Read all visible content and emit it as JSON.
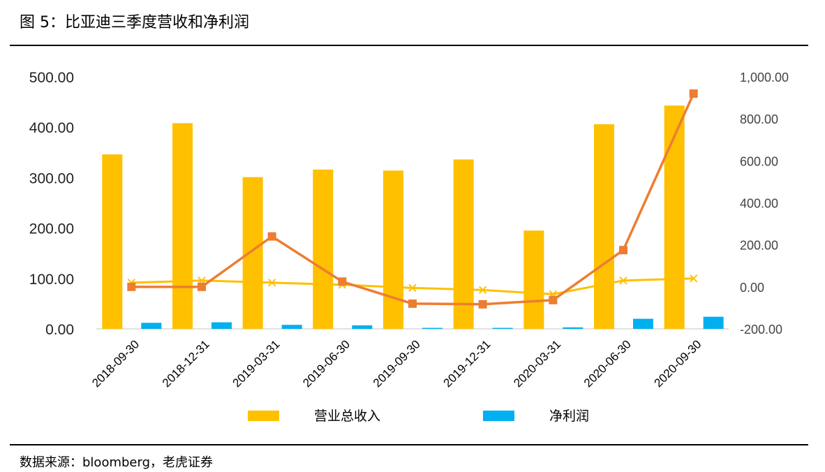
{
  "header": {
    "title": "图 5：比亚迪三季度营收和净利润"
  },
  "footer": {
    "source": "数据来源：bloomberg，老虎证券"
  },
  "chart_data": {
    "type": "bar",
    "categories": [
      "2018-09-30",
      "2018-12-31",
      "2019-03-31",
      "2019-06-30",
      "2019-09-30",
      "2019-12-31",
      "2020-03-31",
      "2020-06-30",
      "2020-09-30"
    ],
    "left_axis": {
      "ylim": [
        0,
        500
      ],
      "ticks": [
        "0.00",
        "100.00",
        "200.00",
        "300.00",
        "400.00",
        "500.00"
      ]
    },
    "right_axis": {
      "ylim": [
        -200,
        1000
      ],
      "ticks": [
        "-200.00",
        "0.00",
        "200.00",
        "400.00",
        "600.00",
        "800.00",
        "1,000.00"
      ]
    },
    "series": [
      {
        "name": "营业总收入",
        "type": "bar",
        "axis": "left",
        "color": "#FFC000",
        "values": [
          346,
          408,
          301,
          316,
          314,
          336,
          195,
          406,
          443
        ]
      },
      {
        "name": "净利润",
        "type": "bar",
        "axis": "left",
        "color": "#00B0F0",
        "values": [
          12,
          13,
          8,
          7,
          2,
          2,
          3,
          20,
          24
        ]
      },
      {
        "type": "line",
        "axis": "right",
        "color": "#ED7D31",
        "marker": "square",
        "values": [
          0,
          0,
          240,
          25,
          -80,
          -83,
          -63,
          175,
          920
        ]
      },
      {
        "type": "line",
        "axis": "right",
        "color": "#FFC000",
        "marker": "x",
        "values": [
          20,
          30,
          20,
          10,
          -5,
          -15,
          -35,
          30,
          40
        ]
      }
    ],
    "legend": {
      "placement": "bottom"
    },
    "grid": false
  }
}
